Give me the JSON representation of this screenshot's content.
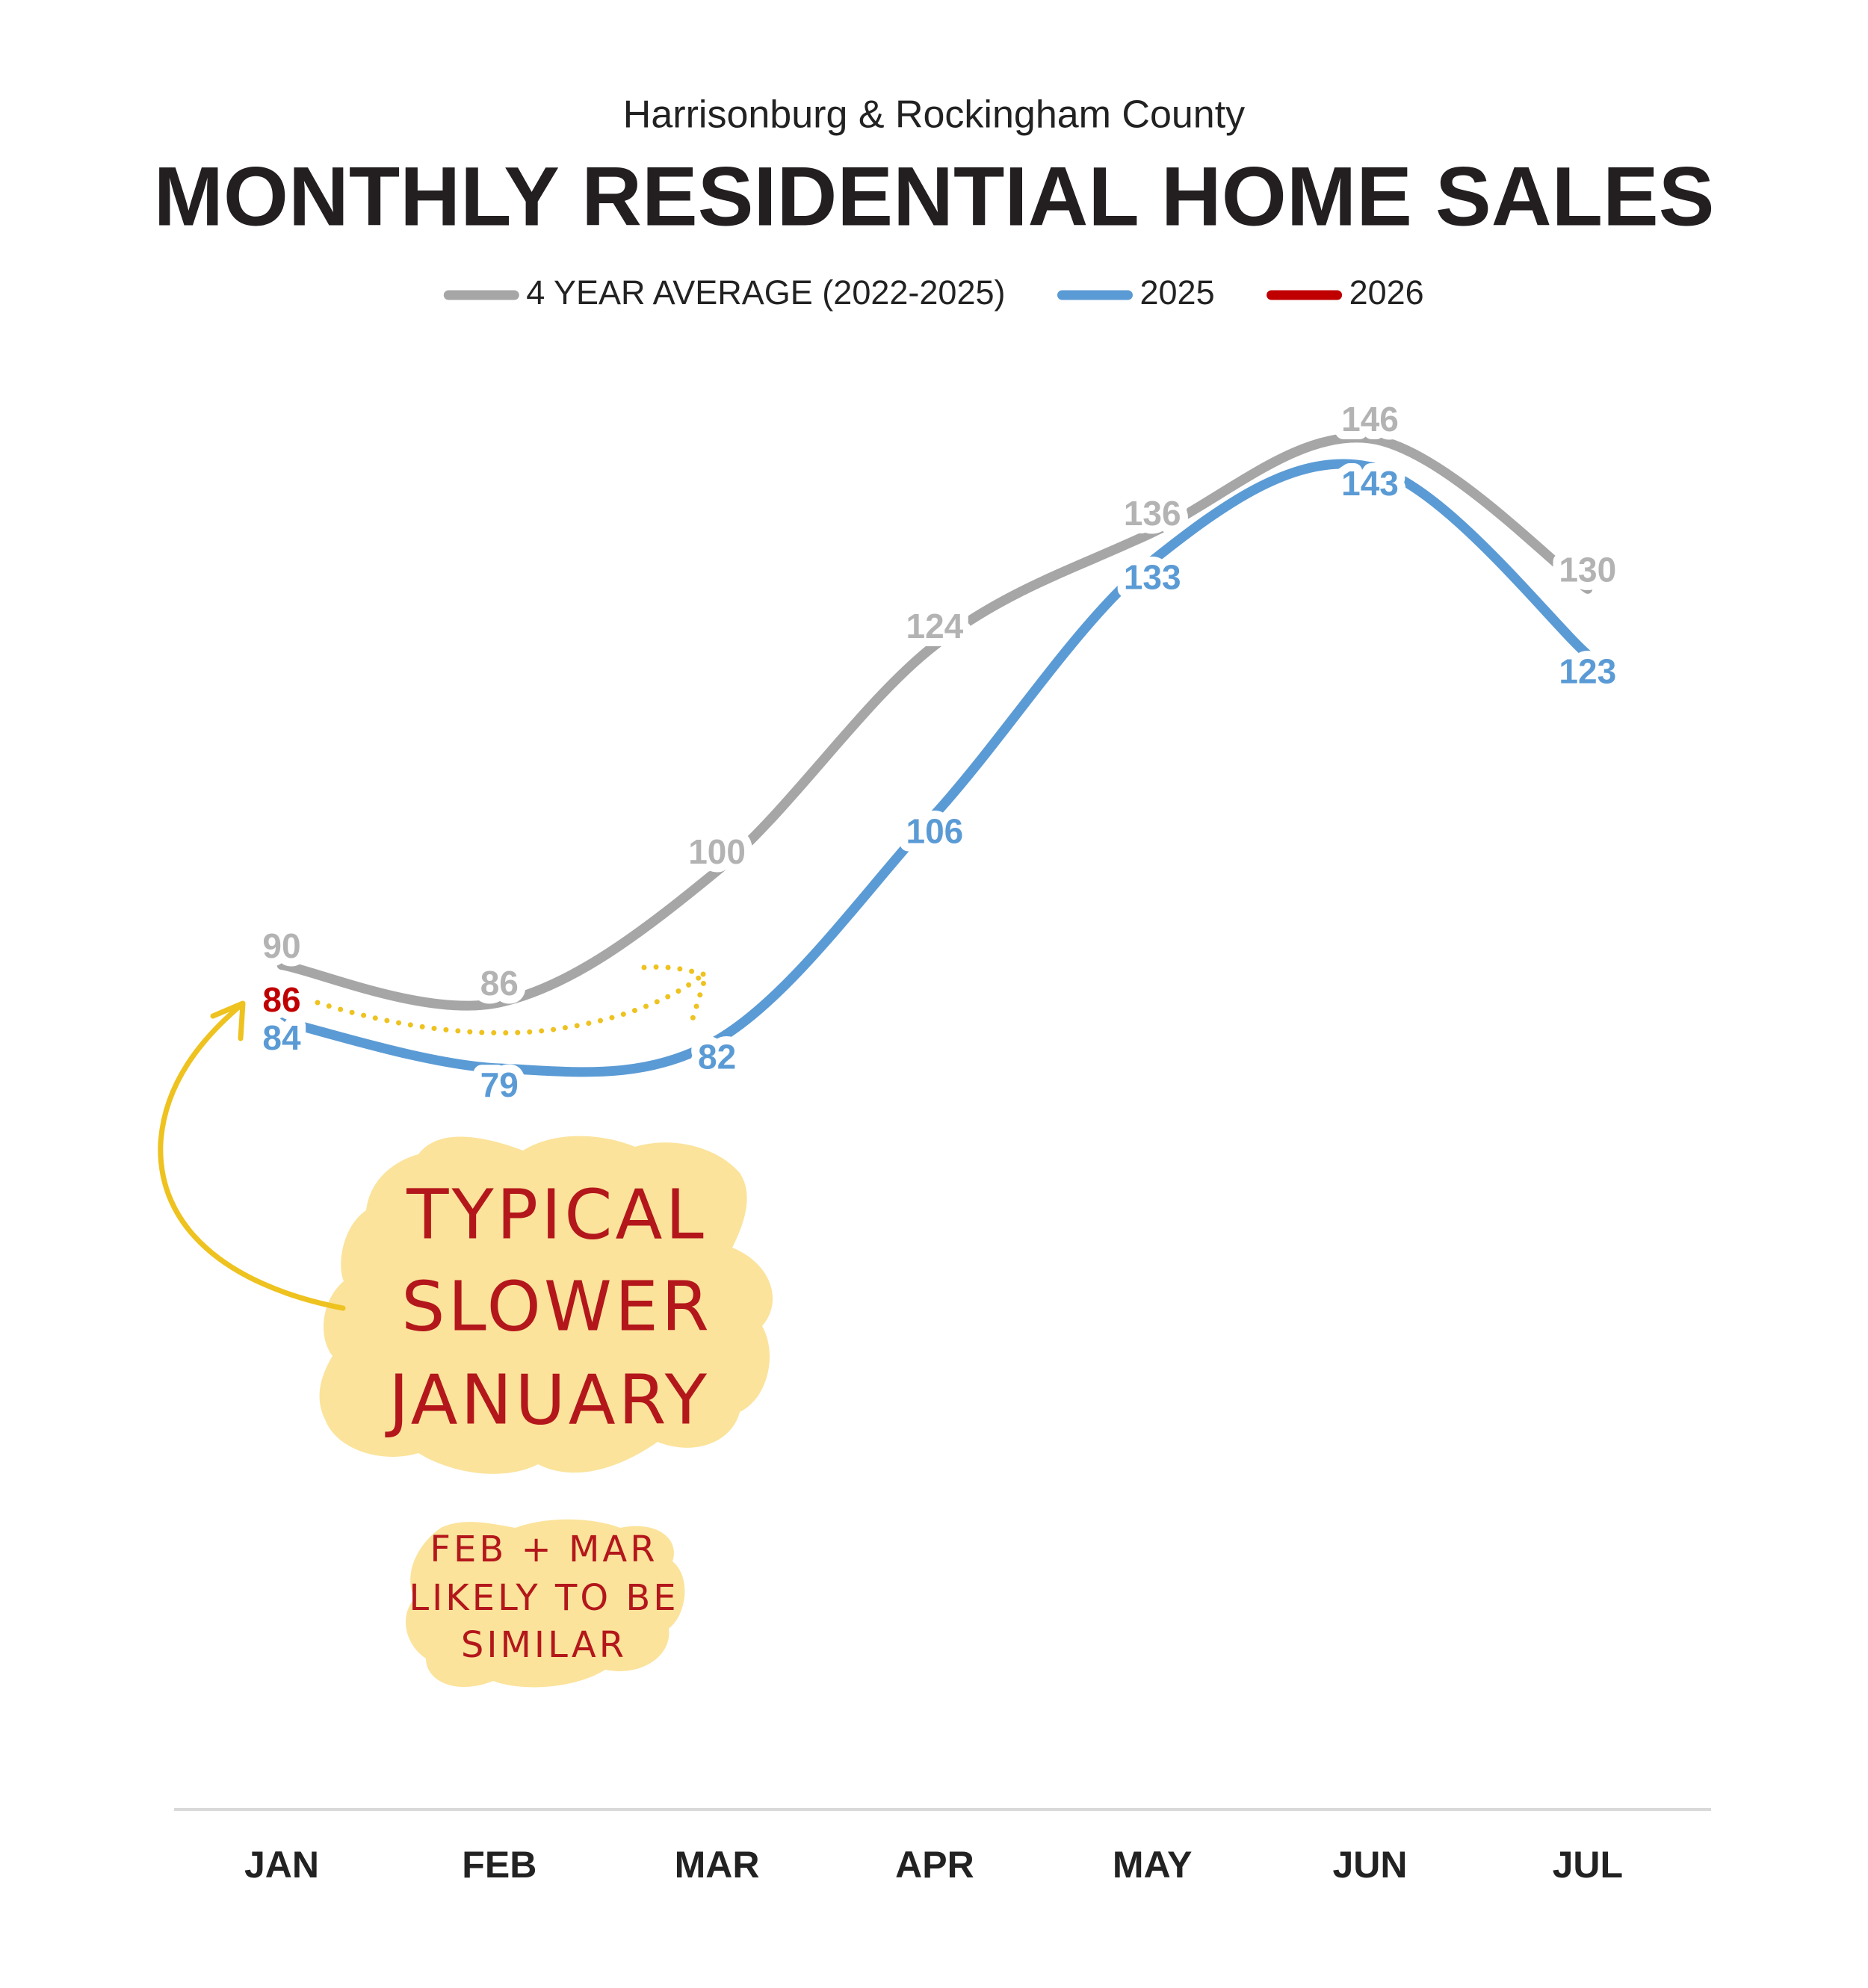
{
  "chart_data": {
    "type": "line",
    "subtitle": "Harrisonburg & Rockingham County",
    "title": "MONTHLY RESIDENTIAL HOME SALES",
    "categories": [
      "JAN",
      "FEB",
      "MAR",
      "APR",
      "MAY",
      "JUN",
      "JUL"
    ],
    "series": [
      {
        "name": "4 YEAR AVERAGE (2022-2025)",
        "color": "#a6a6a6",
        "label_color": "#b3b3b3",
        "values": [
          90,
          86,
          100,
          124,
          136,
          146,
          130
        ]
      },
      {
        "name": "2025",
        "color": "#5b9bd5",
        "label_color": "#5b9bd5",
        "values": [
          84,
          79,
          82,
          106,
          133,
          143,
          123
        ]
      },
      {
        "name": "2026",
        "color": "#c00000",
        "label_color": "#c00000",
        "values": [
          86,
          null,
          null,
          null,
          null,
          null,
          null
        ]
      }
    ],
    "smooth": true,
    "legend": "top",
    "annotations": [
      {
        "lines": [
          "TYPICAL",
          "SLOWER",
          "JANUARY"
        ]
      },
      {
        "lines": [
          "FEB + MAR",
          "LIKELY TO BE",
          "SIMILAR"
        ]
      }
    ]
  }
}
